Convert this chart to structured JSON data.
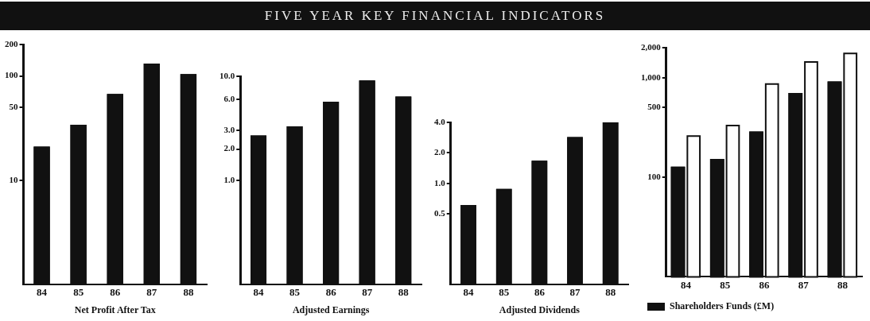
{
  "chart_data": [
    {
      "type": "other",
      "title": "FIVE YEAR KEY FINANCIAL INDICATORS"
    },
    {
      "type": "bar",
      "xlabel": "Net Profit After Tax",
      "categories": [
        "84",
        "85",
        "86",
        "87",
        "88"
      ],
      "log": "y",
      "series": [
        {
          "color": "#111111",
          "values": [
            21,
            34,
            67,
            131,
            104
          ]
        }
      ],
      "ylim": [
        1,
        200
      ],
      "yticks": [
        200,
        100,
        50,
        10
      ],
      "grid": false
    },
    {
      "type": "bar",
      "xlabel": "Adjusted Earnings",
      "categories": [
        "84",
        "85",
        "86",
        "87",
        "88"
      ],
      "log": "y",
      "series": [
        {
          "color": "#111111",
          "values": [
            2.7,
            3.3,
            5.7,
            9.1,
            6.4
          ]
        }
      ],
      "ylim": [
        0.1,
        10
      ],
      "yticks": [
        {
          "value": 10,
          "label": "10.0"
        },
        {
          "value": 6,
          "label": "6.0"
        },
        {
          "value": 3,
          "label": "3.0"
        },
        {
          "value": 2,
          "label": "2.0"
        },
        {
          "value": 1,
          "label": "1.0"
        }
      ],
      "grid": false
    },
    {
      "type": "bar",
      "xlabel": "Adjusted Dividends",
      "categories": [
        "84",
        "85",
        "86",
        "87",
        "88"
      ],
      "log": "y",
      "series": [
        {
          "color": "#111111",
          "values": [
            0.61,
            0.88,
            1.67,
            2.86,
            4.0
          ]
        }
      ],
      "ylim": [
        0.1,
        4
      ],
      "yticks": [
        {
          "value": 4,
          "label": "4.0"
        },
        {
          "value": 2,
          "label": "2.0"
        },
        {
          "value": 1,
          "label": "1.0"
        },
        0.5
      ],
      "grid": false
    },
    {
      "type": "bar",
      "categories": [
        "84",
        "85",
        "86",
        "87",
        "88"
      ],
      "log": "y",
      "legend": "bottom",
      "series": [
        {
          "name": "Shareholders Funds (£M)",
          "color": "#111111",
          "values": [
            128,
            153,
            288,
            703,
            916
          ]
        },
        {
          "color": "#ffffff",
          "values": [
            264,
            337,
            879,
            1466,
            1780
          ]
        }
      ],
      "ylim": [
        10,
        2000
      ],
      "yticks": [
        {
          "value": 2000,
          "label": "2,000"
        },
        {
          "value": 1000,
          "label": "1,000"
        },
        500,
        100
      ],
      "grid": false
    }
  ]
}
